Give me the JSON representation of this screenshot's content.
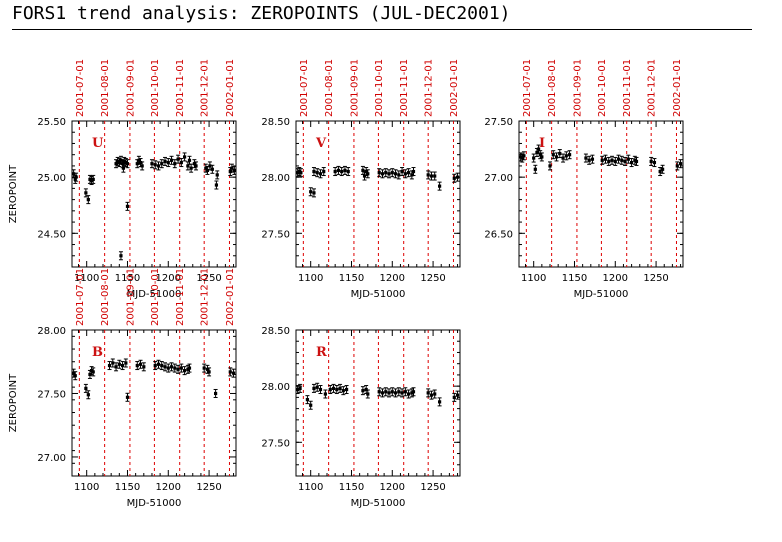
{
  "title": "FORS1 trend analysis: ZEROPOINTS (JUL-DEC2001)",
  "colors": {
    "date_marker": "#dd0000",
    "filter_label": "#cc1111",
    "data": "#000000"
  },
  "chart_data": [
    {
      "type": "scatter",
      "filter_label": "U",
      "xlabel": "MJD-51000",
      "ylabel": "ZEROPOINT",
      "xlim": [
        1082,
        1283
      ],
      "ylim": [
        24.2,
        25.5
      ],
      "x_ticks": [
        1100,
        1150,
        1200,
        1250
      ],
      "y_ticks": [
        24.5,
        25.0,
        25.5
      ],
      "y_tick_labels": [
        "24.50",
        "25.00",
        "25.50"
      ],
      "date_markers": [
        {
          "mjd": 1091,
          "label": "2001-07-01"
        },
        {
          "mjd": 1122,
          "label": "2001-08-01"
        },
        {
          "mjd": 1153,
          "label": "2001-09-01"
        },
        {
          "mjd": 1183,
          "label": "2001-10-01"
        },
        {
          "mjd": 1214,
          "label": "2001-11-01"
        },
        {
          "mjd": 1244,
          "label": "2001-12-01"
        },
        {
          "mjd": 1275,
          "label": "2002-01-01"
        }
      ],
      "points": [
        [
          1084,
          25.03
        ],
        [
          1086,
          24.98
        ],
        [
          1087,
          25.0
        ],
        [
          1099,
          24.86
        ],
        [
          1102,
          24.8
        ],
        [
          1104,
          24.98
        ],
        [
          1106,
          24.97
        ],
        [
          1108,
          24.98
        ],
        [
          1136,
          25.12
        ],
        [
          1138,
          25.14
        ],
        [
          1140,
          25.13
        ],
        [
          1142,
          25.15
        ],
        [
          1144,
          25.12
        ],
        [
          1146,
          25.14
        ],
        [
          1148,
          25.13
        ],
        [
          1150,
          25.12
        ],
        [
          1145,
          25.08
        ],
        [
          1150,
          24.74
        ],
        [
          1142,
          24.3
        ],
        [
          1162,
          25.12
        ],
        [
          1164,
          25.15
        ],
        [
          1166,
          25.13
        ],
        [
          1168,
          25.1
        ],
        [
          1180,
          25.12
        ],
        [
          1184,
          25.11
        ],
        [
          1188,
          25.1
        ],
        [
          1192,
          25.12
        ],
        [
          1196,
          25.14
        ],
        [
          1200,
          25.13
        ],
        [
          1204,
          25.15
        ],
        [
          1208,
          25.12
        ],
        [
          1212,
          25.16
        ],
        [
          1216,
          25.13
        ],
        [
          1220,
          25.18
        ],
        [
          1224,
          25.1
        ],
        [
          1226,
          25.15
        ],
        [
          1228,
          25.08
        ],
        [
          1232,
          25.12
        ],
        [
          1234,
          25.1
        ],
        [
          1246,
          25.08
        ],
        [
          1248,
          25.06
        ],
        [
          1251,
          25.1
        ],
        [
          1254,
          25.07
        ],
        [
          1259,
          24.93
        ],
        [
          1260,
          25.02
        ],
        [
          1276,
          25.05
        ],
        [
          1278,
          25.08
        ],
        [
          1281,
          25.06
        ]
      ]
    },
    {
      "type": "scatter",
      "filter_label": "V",
      "xlabel": "MJD-51000",
      "ylabel": "",
      "xlim": [
        1082,
        1283
      ],
      "ylim": [
        27.2,
        28.5
      ],
      "x_ticks": [
        1100,
        1150,
        1200,
        1250
      ],
      "y_ticks": [
        27.5,
        28.0,
        28.5
      ],
      "y_tick_labels": [
        "27.50",
        "28.00",
        "28.50"
      ],
      "date_markers": [
        {
          "mjd": 1091,
          "label": "2001-07-01"
        },
        {
          "mjd": 1122,
          "label": "2001-08-01"
        },
        {
          "mjd": 1153,
          "label": "2001-09-01"
        },
        {
          "mjd": 1183,
          "label": "2001-10-01"
        },
        {
          "mjd": 1214,
          "label": "2001-11-01"
        },
        {
          "mjd": 1244,
          "label": "2001-12-01"
        },
        {
          "mjd": 1275,
          "label": "2002-01-01"
        }
      ],
      "points": [
        [
          1084,
          28.04
        ],
        [
          1086,
          28.05
        ],
        [
          1088,
          28.04
        ],
        [
          1100,
          27.87
        ],
        [
          1104,
          27.86
        ],
        [
          1104,
          28.05
        ],
        [
          1108,
          28.04
        ],
        [
          1112,
          28.03
        ],
        [
          1116,
          28.05
        ],
        [
          1130,
          28.05
        ],
        [
          1134,
          28.06
        ],
        [
          1138,
          28.05
        ],
        [
          1142,
          28.06
        ],
        [
          1146,
          28.05
        ],
        [
          1164,
          28.06
        ],
        [
          1166,
          28.01
        ],
        [
          1168,
          28.05
        ],
        [
          1170,
          28.03
        ],
        [
          1184,
          28.04
        ],
        [
          1188,
          28.03
        ],
        [
          1192,
          28.04
        ],
        [
          1196,
          28.03
        ],
        [
          1200,
          28.04
        ],
        [
          1204,
          28.03
        ],
        [
          1208,
          28.02
        ],
        [
          1212,
          28.05
        ],
        [
          1216,
          28.03
        ],
        [
          1220,
          28.04
        ],
        [
          1224,
          28.02
        ],
        [
          1226,
          28.05
        ],
        [
          1244,
          28.02
        ],
        [
          1248,
          28.01
        ],
        [
          1252,
          28.01
        ],
        [
          1258,
          27.92
        ],
        [
          1276,
          27.99
        ],
        [
          1280,
          28.0
        ]
      ]
    },
    {
      "type": "scatter",
      "filter_label": "I",
      "xlabel": "MJD-51000",
      "ylabel": "",
      "xlim": [
        1082,
        1283
      ],
      "ylim": [
        26.2,
        27.5
      ],
      "x_ticks": [
        1100,
        1150,
        1200,
        1250
      ],
      "y_ticks": [
        26.5,
        27.0,
        27.5
      ],
      "y_tick_labels": [
        "26.50",
        "27.00",
        "27.50"
      ],
      "date_markers": [
        {
          "mjd": 1091,
          "label": "2001-07-01"
        },
        {
          "mjd": 1122,
          "label": "2001-08-01"
        },
        {
          "mjd": 1153,
          "label": "2001-09-01"
        },
        {
          "mjd": 1183,
          "label": "2001-10-01"
        },
        {
          "mjd": 1214,
          "label": "2001-11-01"
        },
        {
          "mjd": 1244,
          "label": "2001-12-01"
        },
        {
          "mjd": 1275,
          "label": "2002-01-01"
        }
      ],
      "points": [
        [
          1084,
          27.18
        ],
        [
          1086,
          27.17
        ],
        [
          1088,
          27.19
        ],
        [
          1100,
          27.17
        ],
        [
          1102,
          27.07
        ],
        [
          1104,
          27.22
        ],
        [
          1106,
          27.25
        ],
        [
          1108,
          27.2
        ],
        [
          1110,
          27.18
        ],
        [
          1120,
          27.1
        ],
        [
          1124,
          27.2
        ],
        [
          1128,
          27.18
        ],
        [
          1132,
          27.21
        ],
        [
          1136,
          27.17
        ],
        [
          1140,
          27.19
        ],
        [
          1144,
          27.2
        ],
        [
          1164,
          27.17
        ],
        [
          1168,
          27.15
        ],
        [
          1172,
          27.16
        ],
        [
          1184,
          27.15
        ],
        [
          1188,
          27.16
        ],
        [
          1192,
          27.14
        ],
        [
          1196,
          27.15
        ],
        [
          1200,
          27.14
        ],
        [
          1204,
          27.16
        ],
        [
          1208,
          27.15
        ],
        [
          1212,
          27.14
        ],
        [
          1216,
          27.16
        ],
        [
          1220,
          27.13
        ],
        [
          1224,
          27.15
        ],
        [
          1226,
          27.14
        ],
        [
          1244,
          27.14
        ],
        [
          1248,
          27.13
        ],
        [
          1255,
          27.05
        ],
        [
          1258,
          27.07
        ],
        [
          1276,
          27.1
        ],
        [
          1280,
          27.12
        ]
      ]
    },
    {
      "type": "scatter",
      "filter_label": "B",
      "xlabel": "MJD-51000",
      "ylabel": "ZEROPOINT",
      "xlim": [
        1082,
        1283
      ],
      "ylim": [
        26.85,
        28.0
      ],
      "x_ticks": [
        1100,
        1150,
        1200,
        1250
      ],
      "y_ticks": [
        27.0,
        27.5,
        28.0
      ],
      "y_tick_labels": [
        "27.00",
        "27.50",
        "28.00"
      ],
      "date_markers": [
        {
          "mjd": 1091,
          "label": "2001-07-01"
        },
        {
          "mjd": 1122,
          "label": "2001-08-01"
        },
        {
          "mjd": 1153,
          "label": "2001-09-01"
        },
        {
          "mjd": 1183,
          "label": "2001-10-01"
        },
        {
          "mjd": 1214,
          "label": "2001-11-01"
        },
        {
          "mjd": 1244,
          "label": "2001-12-01"
        },
        {
          "mjd": 1275,
          "label": "2002-01-01"
        }
      ],
      "points": [
        [
          1084,
          27.66
        ],
        [
          1086,
          27.64
        ],
        [
          1099,
          27.54
        ],
        [
          1102,
          27.49
        ],
        [
          1104,
          27.65
        ],
        [
          1106,
          27.68
        ],
        [
          1108,
          27.67
        ],
        [
          1128,
          27.72
        ],
        [
          1132,
          27.74
        ],
        [
          1136,
          27.71
        ],
        [
          1140,
          27.73
        ],
        [
          1144,
          27.72
        ],
        [
          1148,
          27.74
        ],
        [
          1150,
          27.47
        ],
        [
          1162,
          27.72
        ],
        [
          1166,
          27.73
        ],
        [
          1170,
          27.71
        ],
        [
          1184,
          27.72
        ],
        [
          1188,
          27.73
        ],
        [
          1192,
          27.72
        ],
        [
          1196,
          27.71
        ],
        [
          1200,
          27.7
        ],
        [
          1204,
          27.71
        ],
        [
          1208,
          27.7
        ],
        [
          1212,
          27.69
        ],
        [
          1216,
          27.7
        ],
        [
          1220,
          27.68
        ],
        [
          1224,
          27.69
        ],
        [
          1226,
          27.7
        ],
        [
          1244,
          27.7
        ],
        [
          1248,
          27.69
        ],
        [
          1250,
          27.67
        ],
        [
          1258,
          27.5
        ],
        [
          1276,
          27.67
        ],
        [
          1280,
          27.66
        ]
      ]
    },
    {
      "type": "scatter",
      "filter_label": "R",
      "xlabel": "MJD-51000",
      "ylabel": "",
      "xlim": [
        1082,
        1283
      ],
      "ylim": [
        27.2,
        28.5
      ],
      "x_ticks": [
        1100,
        1150,
        1200,
        1250
      ],
      "y_ticks": [
        27.5,
        28.0,
        28.5
      ],
      "y_tick_labels": [
        "27.50",
        "28.00",
        "28.50"
      ],
      "date_markers": [
        {
          "mjd": 1091,
          "label": ""
        },
        {
          "mjd": 1122,
          "label": ""
        },
        {
          "mjd": 1153,
          "label": ""
        },
        {
          "mjd": 1183,
          "label": ""
        },
        {
          "mjd": 1214,
          "label": ""
        },
        {
          "mjd": 1244,
          "label": ""
        },
        {
          "mjd": 1275,
          "label": ""
        }
      ],
      "points": [
        [
          1084,
          27.97
        ],
        [
          1087,
          27.98
        ],
        [
          1096,
          27.88
        ],
        [
          1100,
          27.83
        ],
        [
          1104,
          27.98
        ],
        [
          1108,
          27.99
        ],
        [
          1112,
          27.97
        ],
        [
          1118,
          27.93
        ],
        [
          1124,
          27.97
        ],
        [
          1128,
          27.98
        ],
        [
          1132,
          27.97
        ],
        [
          1136,
          27.98
        ],
        [
          1140,
          27.96
        ],
        [
          1144,
          27.97
        ],
        [
          1164,
          27.96
        ],
        [
          1168,
          27.97
        ],
        [
          1170,
          27.93
        ],
        [
          1184,
          27.95
        ],
        [
          1188,
          27.94
        ],
        [
          1192,
          27.95
        ],
        [
          1196,
          27.94
        ],
        [
          1200,
          27.95
        ],
        [
          1204,
          27.94
        ],
        [
          1208,
          27.95
        ],
        [
          1212,
          27.94
        ],
        [
          1216,
          27.95
        ],
        [
          1220,
          27.93
        ],
        [
          1224,
          27.94
        ],
        [
          1226,
          27.95
        ],
        [
          1244,
          27.94
        ],
        [
          1248,
          27.92
        ],
        [
          1252,
          27.93
        ],
        [
          1258,
          27.86
        ],
        [
          1276,
          27.9
        ],
        [
          1280,
          27.92
        ]
      ]
    }
  ]
}
